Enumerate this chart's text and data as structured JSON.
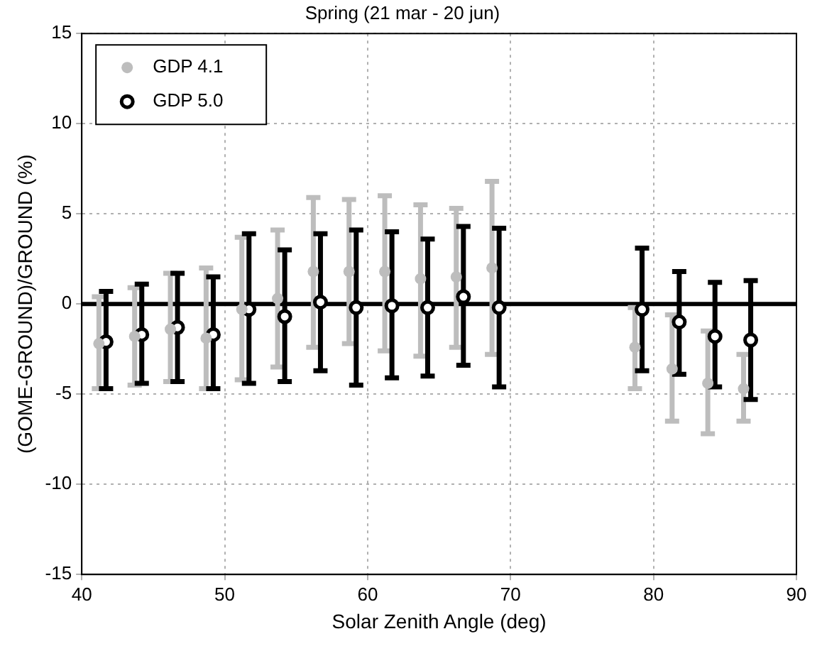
{
  "chart_data": {
    "type": "scatter",
    "title": "Spring (21 mar - 20 jun)",
    "xlabel": "Solar Zenith Angle (deg)",
    "ylabel": "(GOME-GROUND)/GROUND (%)",
    "xlim": [
      40,
      90
    ],
    "xticks": [
      40,
      50,
      60,
      70,
      80,
      90
    ],
    "ylim": [
      -15,
      15
    ],
    "yticks": [
      -15,
      -10,
      -5,
      0,
      5,
      10,
      15
    ],
    "grid": true,
    "legend": "top left",
    "marker": "circle",
    "ref_lines": [
      {
        "axis": "y",
        "value": 0,
        "color": "#000000"
      }
    ],
    "series": [
      {
        "name": "GDP 4.1",
        "color": "#bdbdbd",
        "x": [
          41.2,
          43.7,
          46.2,
          48.7,
          51.2,
          53.7,
          56.2,
          58.7,
          61.2,
          63.7,
          66.2,
          68.7,
          78.7,
          81.3,
          83.8,
          86.3
        ],
        "values": [
          -2.2,
          -1.8,
          -1.4,
          -1.9,
          -0.3,
          0.3,
          1.8,
          1.8,
          1.8,
          1.4,
          1.5,
          2.0,
          -2.4,
          -3.6,
          -4.4,
          -4.7
        ],
        "errors": [
          [
            -4.7,
            0.4
          ],
          [
            -4.5,
            0.9
          ],
          [
            -4.3,
            1.7
          ],
          [
            -4.7,
            2.0
          ],
          [
            -4.2,
            3.7
          ],
          [
            -3.5,
            4.1
          ],
          [
            -2.4,
            5.9
          ],
          [
            -2.2,
            5.8
          ],
          [
            -2.6,
            6.0
          ],
          [
            -2.9,
            5.5
          ],
          [
            -2.4,
            5.3
          ],
          [
            -2.8,
            6.8
          ],
          [
            -4.7,
            -0.2
          ],
          [
            -6.5,
            -0.6
          ],
          [
            -7.2,
            -1.5
          ],
          [
            -6.5,
            -2.8
          ]
        ]
      },
      {
        "name": "GDP 5.0",
        "color": "#000000",
        "x": [
          41.7,
          44.2,
          46.7,
          49.2,
          51.7,
          54.2,
          56.7,
          59.2,
          61.7,
          64.2,
          66.7,
          69.2,
          79.2,
          81.8,
          84.3,
          86.8
        ],
        "values": [
          -2.1,
          -1.7,
          -1.3,
          -1.7,
          -0.3,
          -0.7,
          0.1,
          -0.2,
          -0.1,
          -0.2,
          0.4,
          -0.2,
          -0.3,
          -1.0,
          -1.8,
          -2.0
        ],
        "errors": [
          [
            -4.7,
            0.7
          ],
          [
            -4.4,
            1.1
          ],
          [
            -4.3,
            1.7
          ],
          [
            -4.7,
            1.5
          ],
          [
            -4.4,
            3.9
          ],
          [
            -4.3,
            3.0
          ],
          [
            -3.7,
            3.9
          ],
          [
            -4.5,
            4.1
          ],
          [
            -4.1,
            4.0
          ],
          [
            -4.0,
            3.6
          ],
          [
            -3.4,
            4.3
          ],
          [
            -4.6,
            4.2
          ],
          [
            -3.7,
            3.1
          ],
          [
            -3.9,
            1.8
          ],
          [
            -4.6,
            1.2
          ],
          [
            -5.3,
            1.3
          ]
        ]
      }
    ]
  }
}
